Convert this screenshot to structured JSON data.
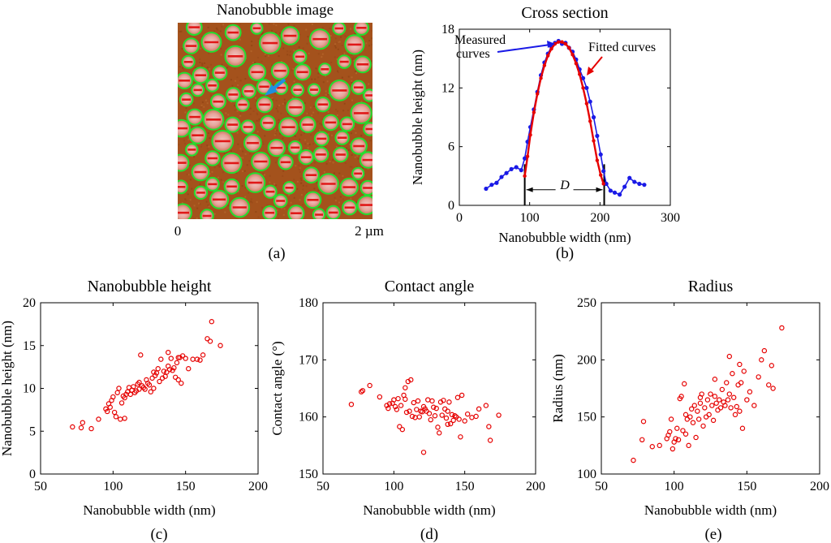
{
  "panel_labels": {
    "a": "(a)",
    "b": "(b)",
    "c": "(c)",
    "d": "(d)",
    "e": "(e)"
  },
  "image_panel": {
    "title": "Nanobubble image",
    "scale_start": "0",
    "scale_end": "2 µm",
    "colors": {
      "background": "#a4521c",
      "outline": "#22e030",
      "core": "#e8a0a0",
      "mark": "#e01818",
      "arrow": "#1e90e0"
    }
  },
  "annotations": {
    "measured": [
      "Measured",
      "curves"
    ],
    "fitted": "Fitted curves",
    "width_symbol": "D"
  },
  "chart_data": [
    {
      "id": "b",
      "type": "line",
      "title": "Cross section",
      "xlabel": "Nanobubble width (nm)",
      "ylabel": "Nanobubble height (nm)",
      "xlim": [
        0,
        300
      ],
      "ylim": [
        0,
        18
      ],
      "xticks": [
        0,
        100,
        200,
        300
      ],
      "yticks": [
        0,
        6,
        12,
        18
      ],
      "grid": false,
      "series": [
        {
          "name": "Measured curves",
          "color": "#1a1ae6",
          "x": [
            38,
            46,
            53,
            60,
            67,
            74,
            81,
            88,
            93,
            97,
            101,
            106,
            111,
            116,
            121,
            126,
            131,
            136,
            141,
            146,
            151,
            156,
            161,
            166,
            171,
            176,
            181,
            186,
            191,
            196,
            201,
            205,
            209,
            215,
            221,
            228,
            235,
            242,
            249,
            256,
            263
          ],
          "y": [
            1.7,
            2.1,
            2.3,
            2.9,
            3.3,
            3.7,
            3.9,
            3.6,
            4.8,
            6.5,
            8.0,
            9.8,
            11.6,
            13.3,
            14.6,
            15.5,
            16.2,
            16.6,
            16.8,
            16.5,
            16.6,
            16.1,
            15.7,
            14.9,
            13.9,
            13.0,
            12.0,
            10.6,
            9.0,
            7.1,
            5.2,
            3.5,
            2.2,
            1.5,
            1.3,
            1.1,
            1.9,
            2.8,
            2.4,
            2.2,
            2.1
          ]
        },
        {
          "name": "Fitted curves",
          "color": "#e60000",
          "x": [
            93,
            97,
            101,
            106,
            111,
            116,
            121,
            126,
            131,
            136,
            141,
            146,
            151,
            156,
            161,
            166,
            171,
            176,
            181,
            186,
            191,
            196,
            201,
            205
          ],
          "y": [
            3.0,
            5.0,
            7.2,
            9.5,
            11.4,
            13.0,
            14.3,
            15.3,
            16.0,
            16.5,
            16.7,
            16.7,
            16.5,
            16.1,
            15.4,
            14.5,
            13.4,
            12.0,
            10.4,
            8.6,
            6.6,
            4.6,
            3.1,
            2.2
          ]
        }
      ],
      "markers": {
        "left": 93,
        "right": 206
      }
    },
    {
      "id": "c",
      "type": "scatter",
      "title": "Nanobubble height",
      "xlabel": "Nanobubble width (nm)",
      "ylabel": "Nanobubble height (nm)",
      "xlim": [
        50,
        200
      ],
      "ylim": [
        0,
        20
      ],
      "xticks": [
        50,
        100,
        150,
        200
      ],
      "yticks": [
        0,
        5,
        10,
        15,
        20
      ],
      "grid": false,
      "color": "#e60000",
      "x": [
        72,
        78,
        79,
        85,
        90,
        95,
        96,
        97,
        98,
        99,
        100,
        102,
        103,
        104,
        105,
        106,
        107,
        108,
        108,
        110,
        111,
        112,
        113,
        114,
        115,
        116,
        117,
        118,
        119,
        120,
        121,
        122,
        123,
        124,
        125,
        126,
        127,
        128,
        129,
        130,
        131,
        132,
        133,
        134,
        135,
        136,
        137,
        138,
        139,
        140,
        141,
        142,
        143,
        144,
        145,
        146,
        147,
        148,
        150,
        152,
        155,
        158,
        160,
        165,
        167,
        168,
        174,
        145,
        138,
        128,
        118,
        109,
        101,
        162
      ],
      "y": [
        5.5,
        5.4,
        6.0,
        5.3,
        6.4,
        7.6,
        7.3,
        8.2,
        7.8,
        8.6,
        9.0,
        6.7,
        9.5,
        10.0,
        6.4,
        8.3,
        9.1,
        6.5,
        8.9,
        9.6,
        10.1,
        9.3,
        9.8,
        10.2,
        9.5,
        9.7,
        10.5,
        9.9,
        13.9,
        10.3,
        10.1,
        9.9,
        11.0,
        10.6,
        10.4,
        9.6,
        11.2,
        10.0,
        11.5,
        11.8,
        12.3,
        10.8,
        13.4,
        11.2,
        12.0,
        11.4,
        11.9,
        12.6,
        12.2,
        13.5,
        12.1,
        12.4,
        11.3,
        13.0,
        11.0,
        13.6,
        10.6,
        13.8,
        13.5,
        12.3,
        13.4,
        13.4,
        13.3,
        15.8,
        15.5,
        17.8,
        15.0,
        13.6,
        14.2,
        11.9,
        10.7,
        9.3,
        7.2,
        13.9
      ]
    },
    {
      "id": "d",
      "type": "scatter",
      "title": "Contact angle",
      "xlabel": "Nanobubble width (nm)",
      "ylabel": "Contact angle (°)",
      "xlim": [
        50,
        200
      ],
      "ylim": [
        150,
        180
      ],
      "xticks": [
        50,
        100,
        150,
        200
      ],
      "yticks": [
        150,
        160,
        170,
        180
      ],
      "grid": false,
      "color": "#e60000",
      "x": [
        70,
        77,
        78,
        83,
        90,
        95,
        96,
        97,
        99,
        100,
        101,
        102,
        103,
        104,
        105,
        106,
        107,
        108,
        109,
        110,
        111,
        112,
        113,
        114,
        115,
        116,
        117,
        118,
        119,
        120,
        121,
        122,
        123,
        124,
        125,
        126,
        127,
        128,
        129,
        130,
        131,
        132,
        133,
        134,
        135,
        136,
        137,
        138,
        139,
        140,
        141,
        142,
        143,
        144,
        145,
        146,
        147,
        148,
        150,
        152,
        155,
        158,
        160,
        165,
        167,
        168,
        174,
        121,
        138,
        108
      ],
      "y": [
        162.2,
        164.4,
        164.6,
        165.5,
        163.5,
        162.0,
        161.5,
        162.3,
        162.4,
        163.0,
        161.8,
        161.3,
        163.2,
        158.3,
        162.0,
        157.8,
        163.8,
        165.1,
        160.8,
        166.2,
        161.0,
        166.5,
        160.1,
        162.5,
        159.9,
        161.3,
        162.8,
        160.0,
        161.0,
        160.9,
        153.8,
        161.4,
        161.0,
        163.0,
        160.6,
        159.5,
        162.8,
        161.7,
        160.2,
        161.5,
        158.2,
        157.2,
        162.6,
        160.3,
        162.9,
        161.4,
        159.8,
        161.0,
        162.6,
        158.8,
        160.4,
        159.4,
        160.2,
        160.0,
        163.4,
        159.6,
        156.5,
        163.8,
        159.3,
        160.5,
        159.9,
        160.1,
        161.4,
        162.0,
        158.3,
        155.9,
        160.3,
        161.8,
        158.7,
        163.1
      ]
    },
    {
      "id": "e",
      "type": "scatter",
      "title": "Radius",
      "xlabel": "Nanobubble width (nm)",
      "ylabel": "Radius (nm)",
      "xlim": [
        50,
        200
      ],
      "ylim": [
        100,
        250
      ],
      "xticks": [
        50,
        100,
        150,
        200
      ],
      "yticks": [
        100,
        150,
        200,
        250
      ],
      "grid": false,
      "color": "#e60000",
      "x": [
        72,
        78,
        79,
        85,
        90,
        95,
        96,
        97,
        98,
        99,
        100,
        102,
        103,
        104,
        105,
        106,
        107,
        108,
        108,
        110,
        111,
        112,
        113,
        114,
        115,
        116,
        117,
        118,
        119,
        120,
        121,
        122,
        123,
        124,
        125,
        126,
        127,
        128,
        129,
        130,
        131,
        132,
        133,
        134,
        135,
        136,
        137,
        138,
        139,
        140,
        141,
        142,
        143,
        144,
        145,
        146,
        147,
        148,
        150,
        152,
        155,
        158,
        160,
        165,
        167,
        168,
        174,
        145,
        138,
        128,
        118,
        109,
        101,
        162
      ],
      "y": [
        112,
        130,
        146,
        124,
        125,
        131,
        134,
        137,
        148,
        122,
        128,
        140,
        130,
        166,
        168,
        138,
        179,
        135,
        152,
        125,
        150,
        157,
        145,
        160,
        132,
        155,
        148,
        162,
        170,
        142,
        158,
        150,
        165,
        152,
        170,
        160,
        147,
        168,
        162,
        156,
        165,
        158,
        174,
        163,
        160,
        180,
        165,
        170,
        158,
        188,
        167,
        152,
        159,
        178,
        155,
        180,
        140,
        190,
        165,
        172,
        160,
        185,
        200,
        178,
        195,
        175,
        228,
        196,
        203,
        183,
        167,
        148,
        131,
        208
      ]
    }
  ]
}
